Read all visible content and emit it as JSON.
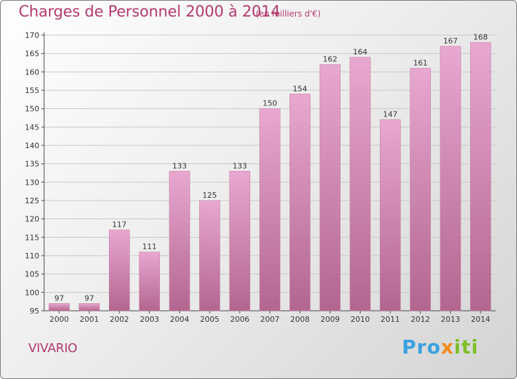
{
  "header": {
    "title": "Charges de Personnel 2000 à 2014",
    "subtitle": "(en milliers d'€)"
  },
  "footer": {
    "commune": "VIVARIO",
    "logo_parts": [
      "Pro",
      "x",
      "iti"
    ]
  },
  "colors": {
    "accent": "#b43a6e",
    "bar_top": "#e8a8d0",
    "bar_bottom": "#b2668f"
  },
  "chart_data": {
    "type": "bar",
    "title": "Charges de Personnel 2000 à 2014",
    "subtitle": "(en milliers d'€)",
    "categories": [
      "2000",
      "2001",
      "2002",
      "2003",
      "2004",
      "2005",
      "2006",
      "2007",
      "2008",
      "2009",
      "2010",
      "2011",
      "2012",
      "2013",
      "2014"
    ],
    "values": [
      97,
      97,
      117,
      111,
      133,
      125,
      133,
      150,
      154,
      162,
      164,
      147,
      161,
      167,
      168
    ],
    "ylim": [
      95,
      170
    ],
    "yticks": [
      95,
      100,
      105,
      110,
      115,
      120,
      125,
      130,
      135,
      140,
      145,
      150,
      155,
      160,
      165,
      170
    ],
    "grid": true,
    "legend": "none"
  }
}
